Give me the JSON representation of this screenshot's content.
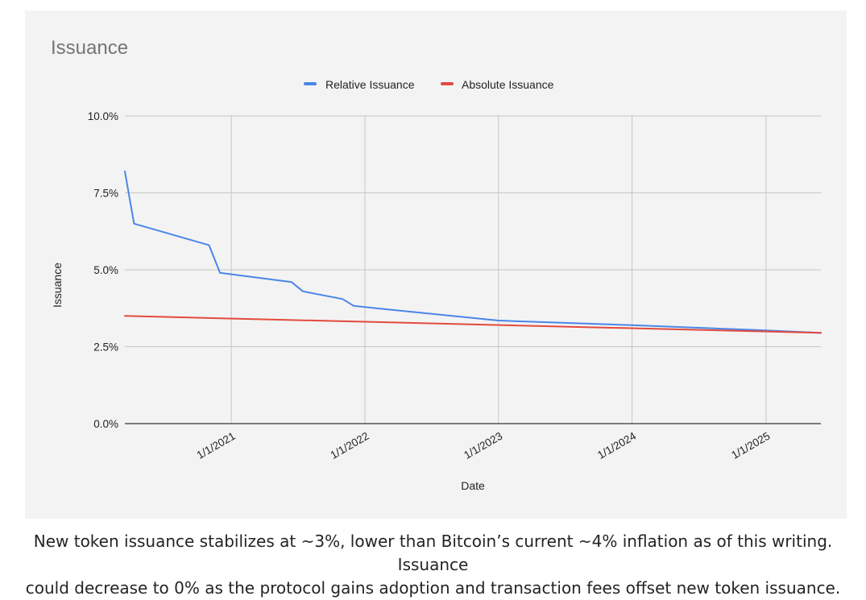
{
  "chart_data": {
    "type": "line",
    "title": "Issuance",
    "xlabel": "Date",
    "ylabel": "Issuance",
    "y_ticks": [
      "10.0%",
      "7.5%",
      "5.0%",
      "2.5%",
      "0.0%"
    ],
    "ylim": [
      0,
      10
    ],
    "x_ticks": [
      "1/1/2021",
      "1/1/2022",
      "1/1/2023",
      "1/1/2024",
      "1/1/2025"
    ],
    "xlim": [
      "2020-03-16",
      "2025-05-31"
    ],
    "grid": true,
    "legend": "top",
    "series": [
      {
        "name": "Relative Issuance",
        "color": "#4a86e8",
        "x": [
          "2020-03-16",
          "2020-04-10",
          "2020-11-01",
          "2020-12-01",
          "2021-06-15",
          "2021-07-15",
          "2021-11-01",
          "2021-12-01",
          "2022-02-01",
          "2023-01-01",
          "2024-01-01",
          "2025-01-01",
          "2025-05-31"
        ],
        "values": [
          8.2,
          6.5,
          5.8,
          4.9,
          4.6,
          4.3,
          4.05,
          3.83,
          3.75,
          3.35,
          3.2,
          3.03,
          2.95
        ]
      },
      {
        "name": "Absolute Issuance",
        "color": "#e34a3d",
        "x": [
          "2020-03-16",
          "2025-05-31"
        ],
        "values": [
          3.5,
          2.95
        ]
      }
    ]
  },
  "caption": {
    "line1": "New token issuance stabilizes at ~3%, lower than Bitcoin’s current ~4% inflation as of this writing. Issuance",
    "line2": "could decrease to 0% as the protocol gains adoption and transaction fees offset new token issuance."
  }
}
